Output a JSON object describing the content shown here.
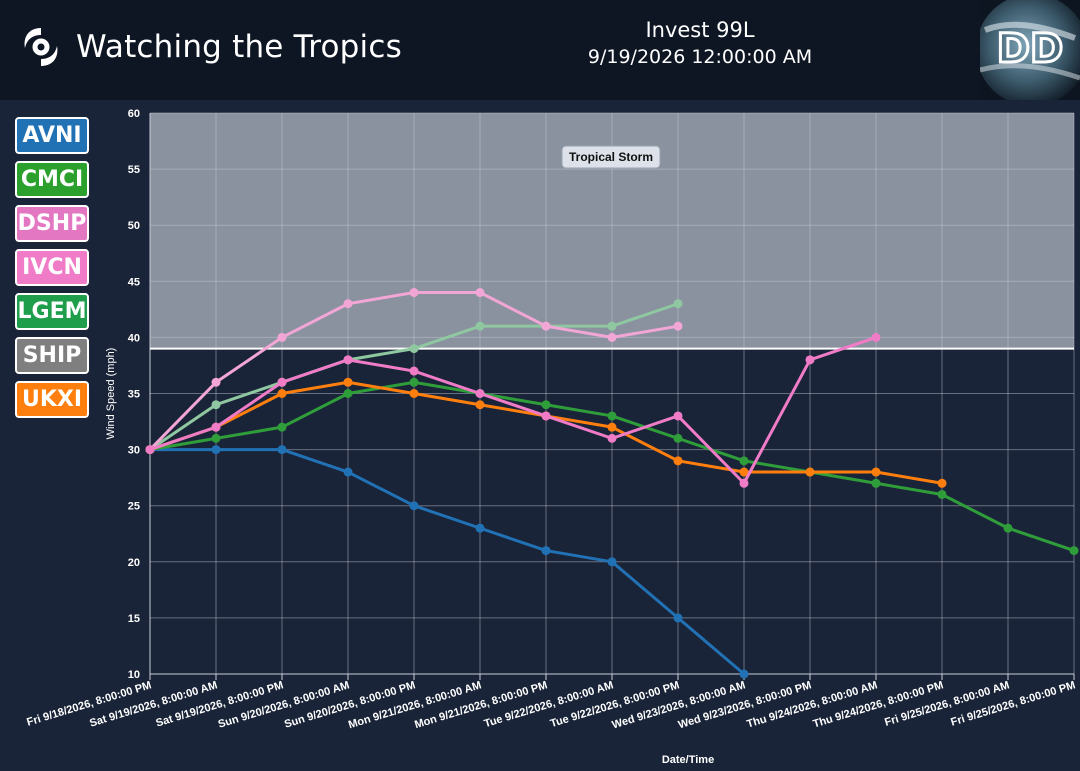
{
  "header": {
    "app_title": "Watching the Tropics",
    "storm_name": "Invest 99L",
    "storm_time": "9/19/2026 12:00:00 AM",
    "logo_text": "DD"
  },
  "legend": [
    {
      "label": "AVNI",
      "color": "#2171b5"
    },
    {
      "label": "CMCI",
      "color": "#2ca02c"
    },
    {
      "label": "DSHP",
      "color": "#e377c2"
    },
    {
      "label": "IVCN",
      "color": "#f07cc8"
    },
    {
      "label": "LGEM",
      "color": "#1e9e4a"
    },
    {
      "label": "SHIP",
      "color": "#7f7f7f"
    },
    {
      "label": "UKXI",
      "color": "#ff7f0e"
    }
  ],
  "chart_data": {
    "type": "line",
    "xlabel": "Date/Time",
    "ylabel": "Wind Speed (mph)",
    "ylim": [
      10,
      60
    ],
    "yticks": [
      10,
      15,
      20,
      25,
      30,
      35,
      40,
      45,
      50,
      55,
      60
    ],
    "categories": [
      "Fri 9/18/2026, 8:00:00 PM",
      "Sat 9/19/2026, 8:00:00 AM",
      "Sat 9/19/2026, 8:00:00 PM",
      "Sun 9/20/2026, 8:00:00 AM",
      "Sun 9/20/2026, 8:00:00 PM",
      "Mon 9/21/2026, 8:00:00 AM",
      "Mon 9/21/2026, 8:00:00 PM",
      "Tue 9/22/2026, 8:00:00 AM",
      "Tue 9/22/2026, 8:00:00 PM",
      "Wed 9/23/2026, 8:00:00 AM",
      "Wed 9/23/2026, 8:00:00 PM",
      "Thu 9/24/2026, 8:00:00 AM",
      "Thu 9/24/2026, 8:00:00 PM",
      "Fri 9/25/2026, 8:00:00 AM",
      "Fri 9/25/2026, 8:00:00 PM"
    ],
    "threshold": {
      "label": "Tropical Storm",
      "value": 39,
      "shade_color": "#8a919f"
    },
    "grid": true,
    "series": [
      {
        "name": "SHIP",
        "color": "#8fc8a0",
        "values": [
          30,
          34,
          36,
          38,
          39,
          41,
          41,
          41,
          43,
          null,
          null,
          null,
          null,
          null,
          null
        ]
      },
      {
        "name": "AVNI",
        "color": "#2171b5",
        "values": [
          30,
          30,
          30,
          28,
          25,
          23,
          21,
          20,
          15,
          10,
          null,
          null,
          null,
          null,
          null
        ]
      },
      {
        "name": "DSHP",
        "color": "#f2a6d6",
        "values": [
          30,
          36,
          40,
          43,
          44,
          44,
          41,
          40,
          41,
          null,
          null,
          null,
          null,
          null,
          null
        ]
      },
      {
        "name": "LGEM",
        "color": "#2f9e3a",
        "values": [
          30,
          31,
          32,
          35,
          36,
          35,
          34,
          33,
          31,
          29,
          28,
          27,
          26,
          23,
          21
        ]
      },
      {
        "name": "UKXI",
        "color": "#ff7f0e",
        "values": [
          30,
          32,
          35,
          36,
          35,
          34,
          33,
          32,
          29,
          28,
          28,
          28,
          27,
          null,
          null
        ]
      },
      {
        "name": "IVCN",
        "color": "#f07cc8",
        "values": [
          30,
          32,
          36,
          38,
          37,
          35,
          33,
          31,
          33,
          27,
          38,
          40,
          null,
          null,
          null
        ]
      }
    ]
  }
}
